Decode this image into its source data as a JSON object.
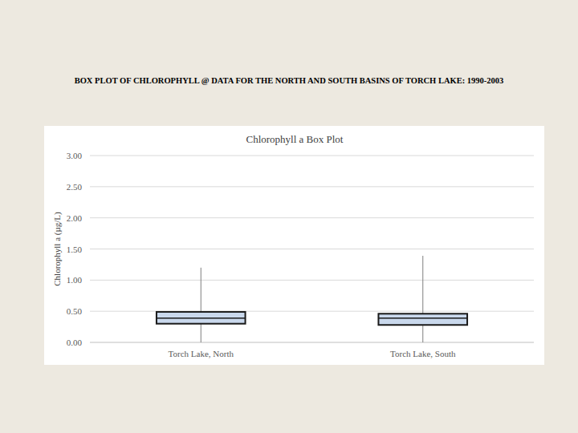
{
  "heading": "BOX PLOT OF CHLOROPHYLL @ DATA FOR THE NORTH AND SOUTH BASINS OF TORCH LAKE: 1990-2003",
  "chart_data": {
    "type": "box",
    "title": "Chlorophyll a Box Plot",
    "y_label": "Chlorophyll a (µg/L)",
    "categories": [
      "Torch Lake, North",
      "Torch Lake, South"
    ],
    "min": [
      0.0,
      0.0
    ],
    "q1": [
      0.3,
      0.28
    ],
    "median": [
      0.39,
      0.39
    ],
    "q3": [
      0.49,
      0.46
    ],
    "max": [
      1.2,
      1.39
    ],
    "color": "#c9d8ec",
    "ylim": [
      0,
      3
    ],
    "yticks": [
      {
        "value": 0,
        "label": "0.00"
      },
      {
        "value": 0.5,
        "label": "0.50"
      },
      {
        "value": 1,
        "label": "1.00"
      },
      {
        "value": 1.5,
        "label": "1.50"
      },
      {
        "value": 2,
        "label": "2.00"
      },
      {
        "value": 2.5,
        "label": "2.50"
      },
      {
        "value": 3,
        "label": "3.00"
      }
    ],
    "grid": true
  }
}
